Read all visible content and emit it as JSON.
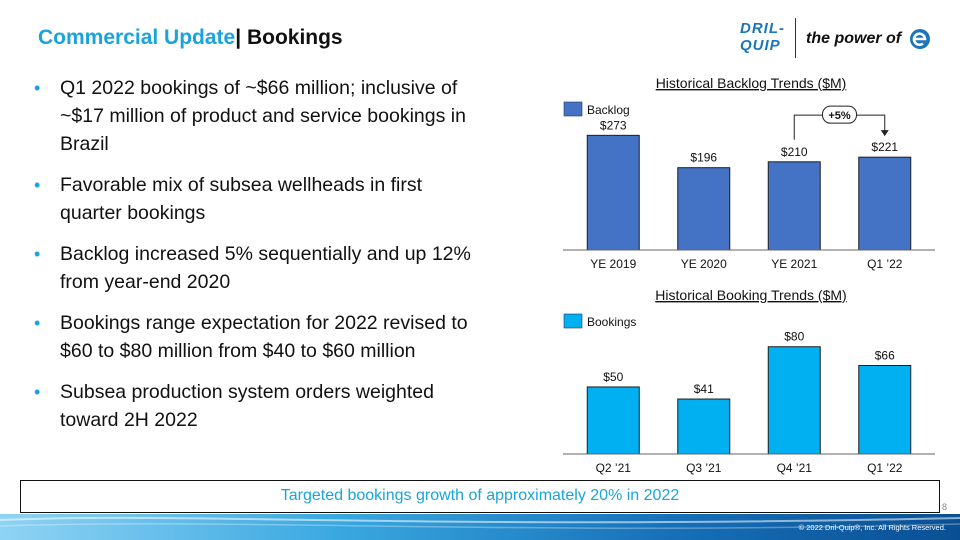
{
  "header": {
    "title_part1": "Commercial Update",
    "title_part2": "| Bookings",
    "logo_brand_line1": "DRIL-",
    "logo_brand_line2": "QUIP",
    "tagline": "the power of"
  },
  "bullets": [
    "Q1 2022 bookings of ~$66 million; inclusive of ~$17 million of product and service bookings in Brazil",
    "Favorable mix of subsea wellheads in first quarter bookings",
    "Backlog increased 5% sequentially and up 12% from year-end 2020",
    "Bookings range expectation for 2022 revised to $60 to $80 million from $40 to $60 million",
    "Subsea production system orders weighted toward 2H 2022"
  ],
  "chart_data": [
    {
      "type": "bar",
      "title": "Historical Backlog Trends ($M)",
      "series": [
        {
          "name": "Backlog",
          "values": [
            273,
            196,
            210,
            221
          ]
        }
      ],
      "categories": [
        "YE 2019",
        "YE 2020",
        "YE 2021",
        "Q1 ’22"
      ],
      "value_labels": [
        "$273",
        "$196",
        "$210",
        "$221"
      ],
      "annotation": "+5%",
      "ylim": [
        0,
        300
      ],
      "color": "#4472c4"
    },
    {
      "type": "bar",
      "title": "Historical Booking Trends ($M)",
      "series": [
        {
          "name": "Bookings",
          "values": [
            50,
            41,
            80,
            66
          ]
        }
      ],
      "categories": [
        "Q2 ’21",
        "Q3 ’21",
        "Q4 ’21",
        "Q1 ’22"
      ],
      "value_labels": [
        "$50",
        "$41",
        "$80",
        "$66"
      ],
      "ylim": [
        0,
        88
      ],
      "color": "#00b0f0"
    }
  ],
  "banner": "Targeted bookings growth of approximately 20% in 2022",
  "page_number": "8",
  "copyright": "© 2022 Dril-Quip®, Inc. All Rights Reserved."
}
